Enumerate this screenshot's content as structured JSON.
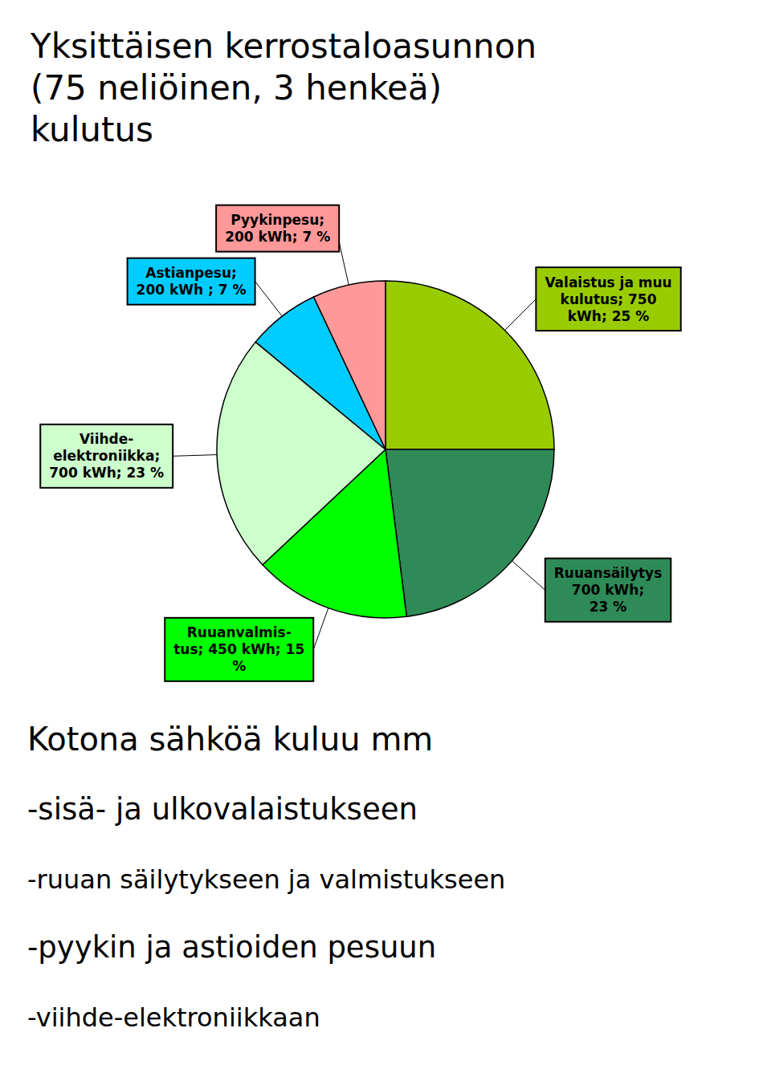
{
  "chart_data": {
    "type": "pie",
    "title": "Yksittäisen kerrostaloasunnon\n(75 neliöinen, 3 henkeä)\nkulutus",
    "categories": [
      "Valaistus ja muu\nkulutus; 750\nkWh; 25 %",
      "Ruuansäilytys\n700 kWh;\n23 %",
      "Ruuanvalmis-\ntus; 450 kWh; 15\n%",
      "Viihde-\nelektroniikka;\n700 kWh; 23 %",
      "Astianpesu;\n200 kWh ; 7 %",
      "Pyykinpesu;\n200 kWh; 7 %"
    ],
    "values": [
      25,
      23,
      15,
      23,
      7,
      7
    ],
    "colors": [
      "#99CC00",
      "#2E8B57",
      "#00FF00",
      "#CCFFCC",
      "#00CCFF",
      "#FF9999"
    ],
    "annotations": [
      "Kotona sähköä kuluu mm",
      "-sisä- ja ulkovalaistukseen",
      "-ruuan säilytykseen ja valmistukseen",
      "-pyykin ja astioiden pesuun",
      "-viihde-elektroniikkaan"
    ]
  }
}
